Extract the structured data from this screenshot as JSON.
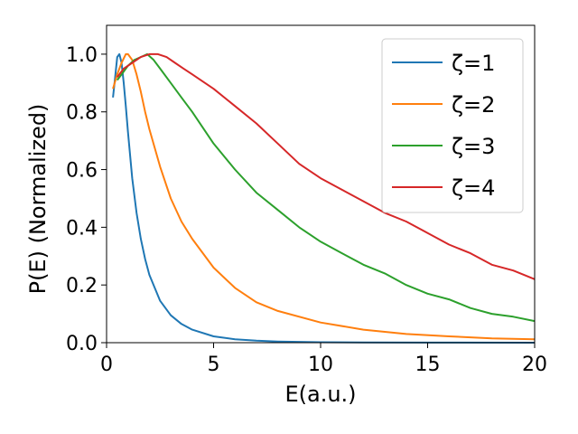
{
  "chart_data": {
    "type": "line",
    "xlabel": "E(a.u.)",
    "ylabel": "P(E) (Normalized)",
    "xlim": [
      0,
      20
    ],
    "ylim": [
      0,
      1.1
    ],
    "xticks": [
      "0",
      "5",
      "10",
      "15",
      "20"
    ],
    "yticks": [
      "0.0",
      "0.2",
      "0.4",
      "0.6",
      "0.8",
      "1.0"
    ],
    "grid": false,
    "legend_position": "top-right",
    "series": [
      {
        "name": "ζ=1",
        "color": "#1f77b4",
        "x": [
          0.3,
          0.4,
          0.5,
          0.6,
          0.7,
          0.8,
          0.9,
          1.0,
          1.2,
          1.4,
          1.6,
          1.8,
          2.0,
          2.5,
          3.0,
          3.5,
          4.0,
          5.0,
          6.0,
          7.0,
          8.0,
          10.0,
          12.0,
          15.0,
          20.0
        ],
        "y": [
          0.85,
          0.92,
          0.99,
          1.0,
          0.97,
          0.9,
          0.82,
          0.73,
          0.57,
          0.45,
          0.36,
          0.29,
          0.235,
          0.145,
          0.095,
          0.065,
          0.045,
          0.022,
          0.012,
          0.007,
          0.004,
          0.0015,
          0.0006,
          0.0002,
          0.0
        ]
      },
      {
        "name": "ζ=2",
        "color": "#ff7f0e",
        "x": [
          0.3,
          0.5,
          0.7,
          0.9,
          1.0,
          1.2,
          1.4,
          1.6,
          1.8,
          2.0,
          2.5,
          3.0,
          3.5,
          4.0,
          5.0,
          6.0,
          7.0,
          8.0,
          10.0,
          12.0,
          14.0,
          16.0,
          18.0,
          20.0
        ],
        "y": [
          0.88,
          0.93,
          0.97,
          1.0,
          1.0,
          0.98,
          0.93,
          0.87,
          0.8,
          0.74,
          0.61,
          0.5,
          0.42,
          0.36,
          0.26,
          0.19,
          0.14,
          0.11,
          0.07,
          0.045,
          0.03,
          0.022,
          0.015,
          0.012
        ]
      },
      {
        "name": "ζ=3",
        "color": "#2ca02c",
        "x": [
          0.5,
          0.8,
          1.0,
          1.3,
          1.6,
          1.9,
          2.2,
          2.5,
          3.0,
          3.5,
          4.0,
          5.0,
          6.0,
          7.0,
          8.0,
          9.0,
          10.0,
          11.0,
          12.0,
          13.0,
          14.0,
          15.0,
          16.0,
          17.0,
          18.0,
          19.0,
          20.0
        ],
        "y": [
          0.91,
          0.94,
          0.96,
          0.98,
          0.99,
          1.0,
          0.98,
          0.95,
          0.9,
          0.85,
          0.8,
          0.69,
          0.6,
          0.52,
          0.46,
          0.4,
          0.35,
          0.31,
          0.27,
          0.24,
          0.2,
          0.17,
          0.15,
          0.12,
          0.1,
          0.09,
          0.075
        ]
      },
      {
        "name": "ζ=4",
        "color": "#d62728",
        "x": [
          0.5,
          0.8,
          1.2,
          1.6,
          2.0,
          2.4,
          2.8,
          3.2,
          3.6,
          4.0,
          5.0,
          6.0,
          7.0,
          8.0,
          9.0,
          10.0,
          11.0,
          12.0,
          13.0,
          14.0,
          15.0,
          16.0,
          17.0,
          18.0,
          19.0,
          20.0
        ],
        "y": [
          0.92,
          0.95,
          0.97,
          0.99,
          1.0,
          1.0,
          0.99,
          0.97,
          0.95,
          0.93,
          0.88,
          0.82,
          0.76,
          0.69,
          0.62,
          0.57,
          0.53,
          0.49,
          0.45,
          0.42,
          0.38,
          0.34,
          0.31,
          0.27,
          0.25,
          0.22
        ]
      }
    ]
  }
}
